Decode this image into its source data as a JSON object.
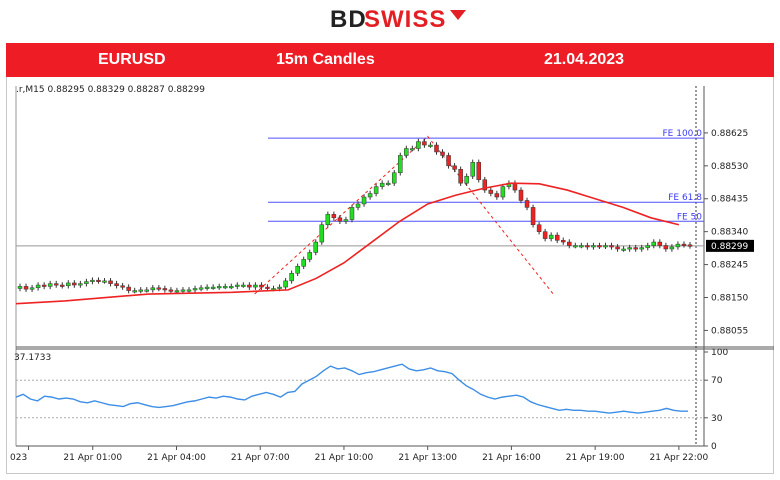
{
  "brand": {
    "part1": "BD",
    "part2": "SWISS"
  },
  "header": {
    "symbol": "EURUSD",
    "timeframe": "15m Candles",
    "date": "21.04.2023"
  },
  "chart_data": {
    "type": "candlestick",
    "ohlc_label": ".r,M15  0.88295 0.88329 0.88287 0.88299",
    "current_price_label": "0.88299",
    "current_price": 0.88299,
    "ylim": [
      0.8801,
      0.8872
    ],
    "y_ticks": [
      "0.88625",
      "0.88530",
      "0.88435",
      "0.88340",
      "0.88245",
      "0.88150",
      "0.88055"
    ],
    "y_tick_values": [
      0.88625,
      0.8853,
      0.88435,
      0.8834,
      0.88245,
      0.8815,
      0.88055
    ],
    "x_ticks": [
      "023",
      "21 Apr 01:00",
      "21 Apr 04:00",
      "21 Apr 07:00",
      "21 Apr 10:00",
      "21 Apr 13:00",
      "21 Apr 16:00",
      "21 Apr 19:00",
      "21 Apr 22:00"
    ],
    "x_tick_hours": [
      -1.3,
      1,
      4,
      7,
      10,
      13,
      16,
      19,
      22
    ],
    "x_range_hours": [
      -1.75,
      22.9
    ],
    "candle_colors": {
      "up": "#22dd22",
      "down": "#ee2222"
    },
    "closes": [
      0.88182,
      0.88174,
      0.88178,
      0.88186,
      0.88182,
      0.8819,
      0.88186,
      0.88184,
      0.88192,
      0.88186,
      0.8819,
      0.88196,
      0.882,
      0.88198,
      0.88198,
      0.8819,
      0.88184,
      0.8818,
      0.8817,
      0.8817,
      0.88172,
      0.88172,
      0.88178,
      0.88176,
      0.88172,
      0.8817,
      0.8817,
      0.88172,
      0.88172,
      0.88176,
      0.88178,
      0.8818,
      0.8818,
      0.88182,
      0.88182,
      0.88182,
      0.88186,
      0.88186,
      0.8818,
      0.88186,
      0.8818,
      0.88176,
      0.88176,
      0.8818,
      0.88198,
      0.8822,
      0.8824,
      0.8826,
      0.8828,
      0.8831,
      0.8836,
      0.8839,
      0.8838,
      0.8837,
      0.88375,
      0.8841,
      0.8842,
      0.8844,
      0.8845,
      0.8847,
      0.8848,
      0.8848,
      0.8851,
      0.8856,
      0.8858,
      0.8858,
      0.886,
      0.8859,
      0.8859,
      0.8857,
      0.8856,
      0.8853,
      0.8852,
      0.8848,
      0.885,
      0.8854,
      0.8849,
      0.8846,
      0.8845,
      0.8844,
      0.8847,
      0.8848,
      0.8846,
      0.8843,
      0.8841,
      0.8836,
      0.8834,
      0.8832,
      0.8833,
      0.88315,
      0.8831,
      0.883,
      0.883,
      0.883,
      0.88296,
      0.883,
      0.88298,
      0.883,
      0.88296,
      0.8829,
      0.8829,
      0.88294,
      0.8829,
      0.88294,
      0.883,
      0.8831,
      0.883,
      0.8829,
      0.88296,
      0.88304,
      0.88302,
      0.88299
    ],
    "ma_line": {
      "color": "#ee2222",
      "period_hint": "trend",
      "values": [
        [
          -1.75,
          0.88132
        ],
        [
          0,
          0.8814
        ],
        [
          3,
          0.8816
        ],
        [
          6,
          0.88165
        ],
        [
          8,
          0.88172
        ],
        [
          9,
          0.88205
        ],
        [
          10,
          0.8825
        ],
        [
          11,
          0.8831
        ],
        [
          12,
          0.8837
        ],
        [
          13,
          0.8842
        ],
        [
          14,
          0.88445
        ],
        [
          15,
          0.88465
        ],
        [
          16,
          0.8848
        ],
        [
          17,
          0.88478
        ],
        [
          18,
          0.8846
        ],
        [
          19,
          0.88435
        ],
        [
          20,
          0.8841
        ],
        [
          21,
          0.8838
        ],
        [
          22,
          0.8836
        ]
      ]
    },
    "fe_levels": [
      {
        "label": "FE 100.0",
        "value": 0.8861,
        "color": "#5050ff"
      },
      {
        "label": "FE 61.8",
        "value": 0.88425,
        "color": "#5050ff"
      },
      {
        "label": "FE 50",
        "value": 0.8837,
        "color": "#5050ff"
      }
    ],
    "fe_projection": [
      [
        6.8,
        0.8816
      ],
      [
        13,
        0.88615
      ],
      [
        17.5,
        0.8816
      ]
    ],
    "indicator": {
      "label": "37.1733",
      "ylim": [
        0,
        100
      ],
      "y_ticks": [
        "100",
        "70",
        "30",
        "0"
      ],
      "y_tick_values": [
        100,
        70,
        30,
        0
      ],
      "levels": [
        70,
        30
      ],
      "color": "#3c8ee6",
      "values": [
        52,
        55,
        50,
        48,
        53,
        52,
        50,
        51,
        50,
        47,
        46,
        48,
        46,
        44,
        43,
        42,
        45,
        46,
        44,
        42,
        41,
        42,
        43,
        45,
        47,
        48,
        50,
        52,
        51,
        53,
        52,
        50,
        49,
        53,
        55,
        57,
        55,
        52,
        57,
        58,
        66,
        70,
        74,
        80,
        85,
        82,
        83,
        80,
        76,
        78,
        79,
        81,
        83,
        85,
        87,
        82,
        80,
        81,
        83,
        80,
        79,
        77,
        70,
        64,
        60,
        55,
        52,
        50,
        52,
        53,
        54,
        52,
        47,
        44,
        42,
        40,
        38,
        39,
        38,
        38,
        37,
        37,
        36,
        35,
        36,
        37,
        36,
        35,
        36,
        37,
        38,
        40,
        38,
        37,
        37
      ]
    }
  }
}
